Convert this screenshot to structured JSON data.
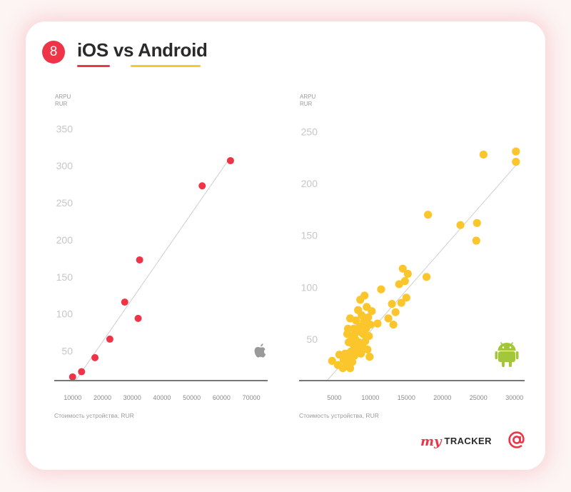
{
  "header": {
    "badge": "8",
    "title": "iOS vs Android"
  },
  "brand": {
    "prefix": "my",
    "name": "TRACKER",
    "at_icon": "at-sign-icon"
  },
  "colors": {
    "ios": "#ee3446",
    "android": "#fbc62b",
    "trend": "#cfcfcf",
    "axis": "#777777",
    "android_logo": "#a4c639",
    "apple_logo": "#9a9a9a"
  },
  "chart_data": [
    {
      "type": "scatter",
      "name": "ios",
      "ylabel_line1": "ARPU",
      "ylabel_line2": "RUR",
      "xlabel": "Стоимость устройства, RUR",
      "xlim": [
        0,
        75000
      ],
      "ylim": [
        10,
        360
      ],
      "x_ticks": [
        10000,
        20000,
        30000,
        40000,
        50000,
        60000,
        70000
      ],
      "y_ticks": [
        50,
        100,
        150,
        200,
        250,
        300,
        350
      ],
      "icon": "apple-logo-icon",
      "points": [
        {
          "x": 10000,
          "y": 15
        },
        {
          "x": 13000,
          "y": 22
        },
        {
          "x": 17500,
          "y": 41
        },
        {
          "x": 22500,
          "y": 66
        },
        {
          "x": 27500,
          "y": 116
        },
        {
          "x": 32000,
          "y": 94
        },
        {
          "x": 32500,
          "y": 173
        },
        {
          "x": 53500,
          "y": 273
        },
        {
          "x": 63000,
          "y": 307
        }
      ],
      "trend": {
        "x1": 11000,
        "y1": 10,
        "x2": 62000,
        "y2": 306
      }
    },
    {
      "type": "scatter",
      "name": "android",
      "ylabel_line1": "ARPU",
      "ylabel_line2": "RUR",
      "xlabel": "Стоимость устройства, RUR",
      "xlim": [
        1500,
        32000
      ],
      "ylim": [
        10,
        260
      ],
      "x_ticks": [
        5000,
        10000,
        15000,
        20000,
        25000,
        30000
      ],
      "y_ticks": [
        50,
        100,
        150,
        200,
        250
      ],
      "icon": "android-logo-icon",
      "points": [
        {
          "x": 4700,
          "y": 29
        },
        {
          "x": 5500,
          "y": 25
        },
        {
          "x": 5700,
          "y": 35
        },
        {
          "x": 6200,
          "y": 22
        },
        {
          "x": 6300,
          "y": 30
        },
        {
          "x": 6500,
          "y": 36
        },
        {
          "x": 6700,
          "y": 27
        },
        {
          "x": 6800,
          "y": 55
        },
        {
          "x": 6900,
          "y": 60
        },
        {
          "x": 7000,
          "y": 32
        },
        {
          "x": 7000,
          "y": 47
        },
        {
          "x": 7200,
          "y": 22
        },
        {
          "x": 7200,
          "y": 70
        },
        {
          "x": 7300,
          "y": 38
        },
        {
          "x": 7400,
          "y": 53
        },
        {
          "x": 7500,
          "y": 28
        },
        {
          "x": 7600,
          "y": 45
        },
        {
          "x": 7700,
          "y": 60
        },
        {
          "x": 7800,
          "y": 34
        },
        {
          "x": 7900,
          "y": 50
        },
        {
          "x": 8000,
          "y": 68
        },
        {
          "x": 8100,
          "y": 40
        },
        {
          "x": 8200,
          "y": 57
        },
        {
          "x": 8300,
          "y": 78
        },
        {
          "x": 8400,
          "y": 47
        },
        {
          "x": 8500,
          "y": 62
        },
        {
          "x": 8600,
          "y": 88
        },
        {
          "x": 8700,
          "y": 36
        },
        {
          "x": 8800,
          "y": 73
        },
        {
          "x": 8900,
          "y": 43
        },
        {
          "x": 9000,
          "y": 55
        },
        {
          "x": 9100,
          "y": 67
        },
        {
          "x": 9200,
          "y": 92
        },
        {
          "x": 9300,
          "y": 48
        },
        {
          "x": 9400,
          "y": 60
        },
        {
          "x": 9500,
          "y": 81
        },
        {
          "x": 9600,
          "y": 40
        },
        {
          "x": 9700,
          "y": 71
        },
        {
          "x": 9800,
          "y": 53
        },
        {
          "x": 9900,
          "y": 33
        },
        {
          "x": 10000,
          "y": 64
        },
        {
          "x": 10200,
          "y": 77
        },
        {
          "x": 11000,
          "y": 65
        },
        {
          "x": 11500,
          "y": 98
        },
        {
          "x": 12500,
          "y": 70
        },
        {
          "x": 13000,
          "y": 84
        },
        {
          "x": 13200,
          "y": 64
        },
        {
          "x": 13500,
          "y": 76
        },
        {
          "x": 14000,
          "y": 103
        },
        {
          "x": 14300,
          "y": 85
        },
        {
          "x": 14500,
          "y": 118
        },
        {
          "x": 14800,
          "y": 106
        },
        {
          "x": 15000,
          "y": 90
        },
        {
          "x": 15200,
          "y": 113
        },
        {
          "x": 17800,
          "y": 110
        },
        {
          "x": 18000,
          "y": 170
        },
        {
          "x": 22500,
          "y": 160
        },
        {
          "x": 24800,
          "y": 162
        },
        {
          "x": 24700,
          "y": 145
        },
        {
          "x": 25700,
          "y": 228
        },
        {
          "x": 30200,
          "y": 231
        },
        {
          "x": 30200,
          "y": 221
        }
      ],
      "trend": {
        "x1": 4000,
        "y1": 10,
        "x2": 30500,
        "y2": 220
      }
    }
  ]
}
